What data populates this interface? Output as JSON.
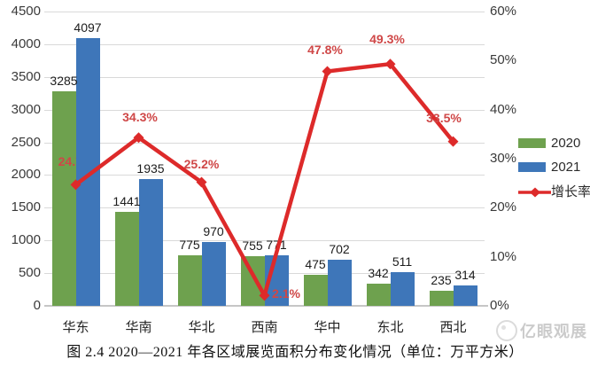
{
  "chart_data": {
    "type": "bar",
    "subtype": "grouped-bars-with-line-overlay",
    "categories": [
      "华东",
      "华南",
      "华北",
      "西南",
      "华中",
      "东北",
      "西北"
    ],
    "series": [
      {
        "name": "2020",
        "type": "bar",
        "color": "#6ea14e",
        "values": [
          3285,
          1441,
          775,
          755,
          475,
          342,
          235
        ]
      },
      {
        "name": "2021",
        "type": "bar",
        "color": "#3e76b9",
        "values": [
          4097,
          1935,
          970,
          771,
          702,
          511,
          314
        ]
      },
      {
        "name": "增长率",
        "type": "line",
        "color": "#dd2a2a",
        "label_color": "#cf4747",
        "unit": "%",
        "values": [
          24.7,
          34.3,
          25.2,
          2.1,
          47.8,
          49.3,
          33.5
        ],
        "point_labels": [
          "24.7%",
          "34.3%",
          "25.2%",
          "2.1%",
          "47.8%",
          "49.3%",
          "33.5%"
        ]
      }
    ],
    "left_axis": {
      "min": 0,
      "max": 4500,
      "step": 500,
      "ticks": [
        "4500",
        "4000",
        "3500",
        "3000",
        "2500",
        "2000",
        "1500",
        "1000",
        "500",
        "0"
      ]
    },
    "right_axis": {
      "min": 0,
      "max": 60,
      "step": 10,
      "ticks": [
        "60%",
        "50%",
        "40%",
        "30%",
        "20%",
        "10%",
        "0%"
      ]
    },
    "grid": "horizontal",
    "grid_color": "#d9d9d9",
    "legend_position": "right",
    "title": ""
  },
  "legend": {
    "items": [
      "2020",
      "2021",
      "增长率"
    ]
  },
  "caption": "图 2.4 2020—2021 年各区域展览面积分布变化情况（单位：万平方米）",
  "watermark": {
    "text": "亿眼观展"
  }
}
